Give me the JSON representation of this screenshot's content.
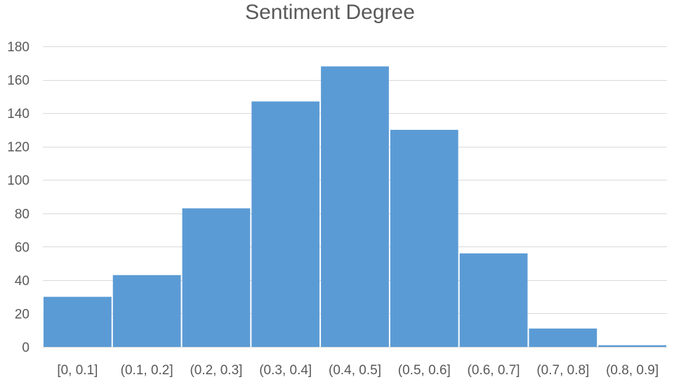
{
  "chart_data": {
    "type": "bar",
    "title": "Sentiment Degree",
    "xlabel": "",
    "ylabel": "",
    "categories": [
      "[0, 0.1]",
      "(0.1, 0.2]",
      "(0.2, 0.3]",
      "(0.3, 0.4]",
      "(0.4, 0.5]",
      "(0.5, 0.6]",
      "(0.6, 0.7]",
      "(0.7, 0.8]",
      "(0.8, 0.9]"
    ],
    "values": [
      30,
      43,
      83,
      147,
      168,
      130,
      56,
      11,
      1
    ],
    "ylim": [
      0,
      180
    ],
    "yticks": [
      "0",
      "20",
      "40",
      "60",
      "80",
      "100",
      "120",
      "140",
      "160",
      "180"
    ],
    "grid": true,
    "legend": "none",
    "bar_color": "#5b9bd5",
    "gridline_color": "#d9d9d9",
    "text_color": "#595959"
  }
}
